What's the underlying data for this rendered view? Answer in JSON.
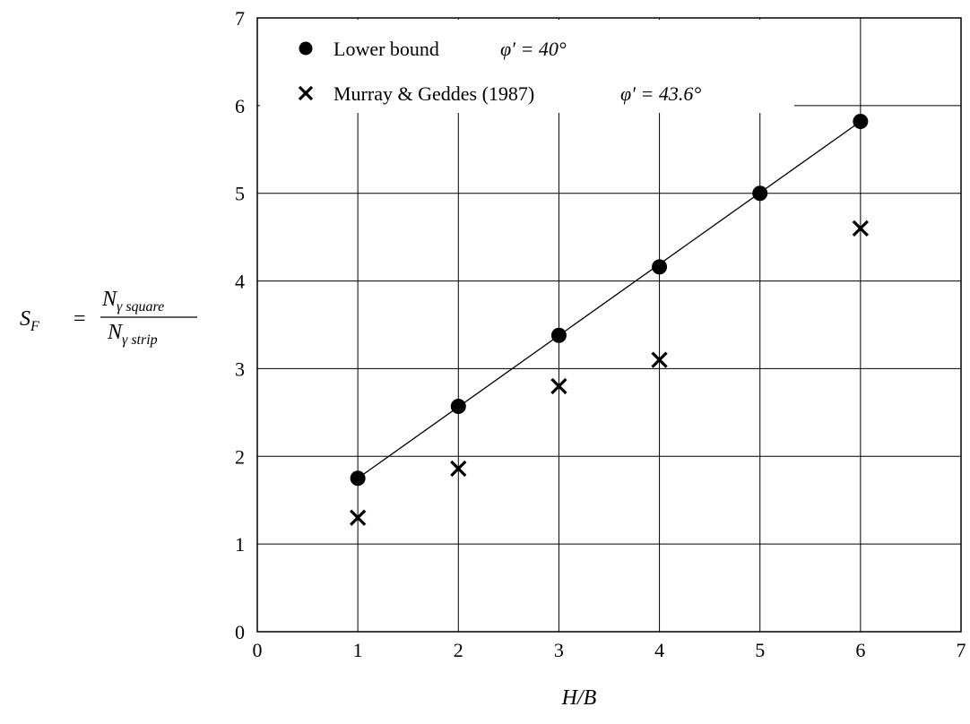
{
  "chart_data": {
    "type": "scatter",
    "xlabel": "H/B",
    "ylabel": {
      "lhs_symbol": "S",
      "lhs_subscript": "F",
      "equals": "=",
      "numerator": "N",
      "numerator_subscript": "γ square",
      "denominator": "N",
      "denominator_subscript": "γ strip"
    },
    "xlim": [
      0,
      7
    ],
    "ylim": [
      0,
      7
    ],
    "x_ticks": [
      "0",
      "1",
      "2",
      "3",
      "4",
      "5",
      "6",
      "7"
    ],
    "y_ticks": [
      "0",
      "1",
      "2",
      "3",
      "4",
      "5",
      "6",
      "7"
    ],
    "grid": true,
    "legend_position": "top-left",
    "series": [
      {
        "name": "Lower bound",
        "annotation": "φ′ = 40°",
        "marker": "filled-circle",
        "line": "linear-fit",
        "x": [
          1,
          2,
          3,
          4,
          5,
          6
        ],
        "y": [
          1.75,
          2.57,
          3.38,
          4.16,
          5.0,
          5.82
        ]
      },
      {
        "name": "Murray & Geddes (1987)",
        "annotation": "φ′ = 43.6°",
        "marker": "x",
        "line": "none",
        "x": [
          1,
          2,
          3,
          4,
          6
        ],
        "y": [
          1.3,
          1.86,
          2.8,
          3.1,
          4.6
        ]
      }
    ],
    "fit_line": {
      "x": [
        1,
        6
      ],
      "y": [
        1.75,
        5.82
      ]
    }
  }
}
